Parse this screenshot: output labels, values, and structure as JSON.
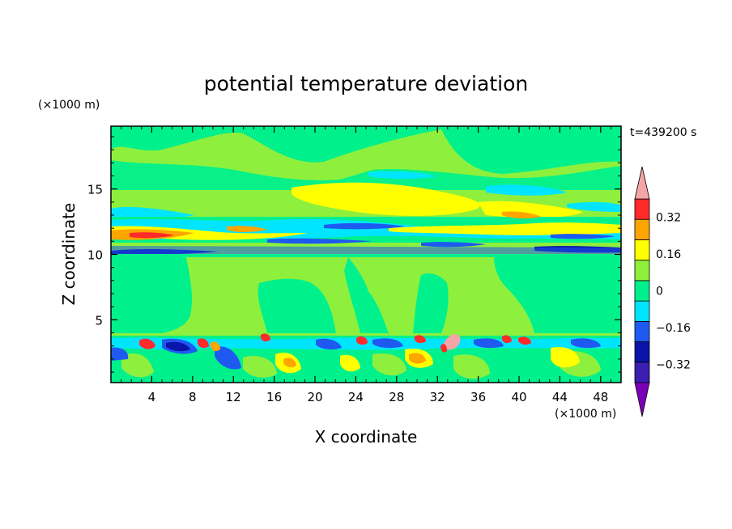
{
  "chart_data": {
    "type": "heatmap",
    "title": "potential temperature deviation",
    "time_label": "t=439200 s",
    "xlabel": "X coordinate",
    "ylabel": "Z coordinate",
    "x_units": "(×1000 m)",
    "y_units": "(×1000 m)",
    "xlim": [
      0,
      50
    ],
    "ylim": [
      0.2,
      19.8
    ],
    "x_ticks": [
      4,
      8,
      12,
      16,
      20,
      24,
      28,
      32,
      36,
      40,
      44,
      48
    ],
    "y_ticks": [
      5,
      10,
      15
    ],
    "colorbar": {
      "labels": [
        0.32,
        0.16,
        0,
        -0.16,
        -0.32
      ],
      "label_text": [
        "0.32",
        "0.16",
        "0",
        "−0.16",
        "−0.32"
      ],
      "levels": [
        -0.4,
        -0.32,
        -0.24,
        -0.16,
        -0.08,
        0,
        0.08,
        0.16,
        0.24,
        0.32,
        0.4
      ],
      "colors": [
        "#7b00b5",
        "#3b1fb0",
        "#0a14a8",
        "#1e5af0",
        "#00e5ff",
        "#00f08c",
        "#8ef03c",
        "#ffff00",
        "#ffa500",
        "#ff2a2a",
        "#f4a6a6"
      ],
      "extend": "both"
    },
    "field": {
      "background_color": "#8ef03c",
      "layers": [
        {
          "z_range": [
            17.2,
            19.8
          ],
          "description": "mostly 0 to 0.08 with patches 0 to -0.08"
        },
        {
          "z_range": [
            14.0,
            16.2
          ],
          "description": "0.08 to 0.24 band with -0.08 to -0.16 patches"
        },
        {
          "z_range": [
            12.4,
            13.6
          ],
          "description": "alternating -0.16 to 0.16"
        },
        {
          "z_range": [
            10.6,
            12.2
          ],
          "description": "0.16 to 0.32 maxima near x=3 and x=15"
        },
        {
          "z_range": [
            10.0,
            10.6
          ],
          "description": "-0.16 to -0.32 minima"
        },
        {
          "z_range": [
            3.6,
            10.0
          ],
          "description": "0 to 0.08 with 0 to -0.08 plumes"
        },
        {
          "z_range": [
            0.2,
            3.6
          ],
          "description": "turbulent boundary layer, -0.32 to 0.4"
        }
      ]
    }
  }
}
